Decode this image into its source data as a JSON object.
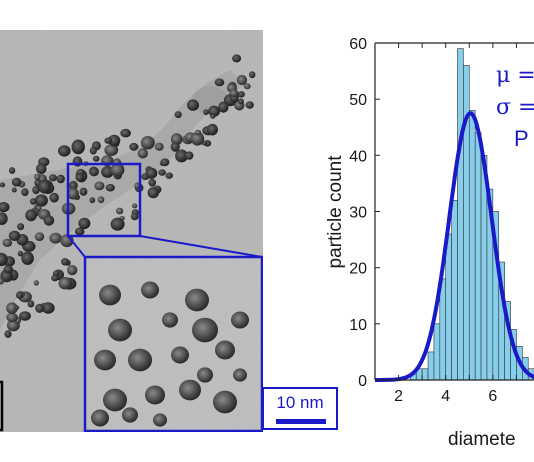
{
  "tem": {
    "scale_label": "10 nm"
  },
  "chart_data": {
    "type": "bar",
    "subtype": "histogram",
    "xlabel": "diamete",
    "ylabel": "particle count",
    "xlim": [
      1,
      8
    ],
    "ylim": [
      0,
      60
    ],
    "xticks": [
      2,
      4,
      6
    ],
    "yticks": [
      0,
      10,
      20,
      30,
      40,
      50,
      60
    ],
    "bin_width": 0.25,
    "bins": [
      {
        "x0": 2.5,
        "count": 1
      },
      {
        "x0": 2.75,
        "count": 2
      },
      {
        "x0": 3.0,
        "count": 2
      },
      {
        "x0": 3.25,
        "count": 5
      },
      {
        "x0": 3.5,
        "count": 10
      },
      {
        "x0": 3.75,
        "count": 18
      },
      {
        "x0": 4.0,
        "count": 26
      },
      {
        "x0": 4.25,
        "count": 32
      },
      {
        "x0": 4.5,
        "count": 59
      },
      {
        "x0": 4.75,
        "count": 56
      },
      {
        "x0": 5.0,
        "count": 48
      },
      {
        "x0": 5.25,
        "count": 44
      },
      {
        "x0": 5.5,
        "count": 40
      },
      {
        "x0": 5.75,
        "count": 34
      },
      {
        "x0": 6.0,
        "count": 30
      },
      {
        "x0": 6.25,
        "count": 21
      },
      {
        "x0": 6.5,
        "count": 14
      },
      {
        "x0": 6.75,
        "count": 9
      },
      {
        "x0": 7.0,
        "count": 6
      },
      {
        "x0": 7.25,
        "count": 4
      },
      {
        "x0": 7.5,
        "count": 2
      },
      {
        "x0": 7.75,
        "count": 1
      }
    ],
    "fit": {
      "type": "gaussian",
      "peak": 47.5,
      "mean": 5.05,
      "sigma": 0.9
    },
    "annotations": [
      "μ =",
      "σ =",
      "P"
    ],
    "bar_color": "#87CEEB",
    "fit_color": "#1a1ac8"
  }
}
